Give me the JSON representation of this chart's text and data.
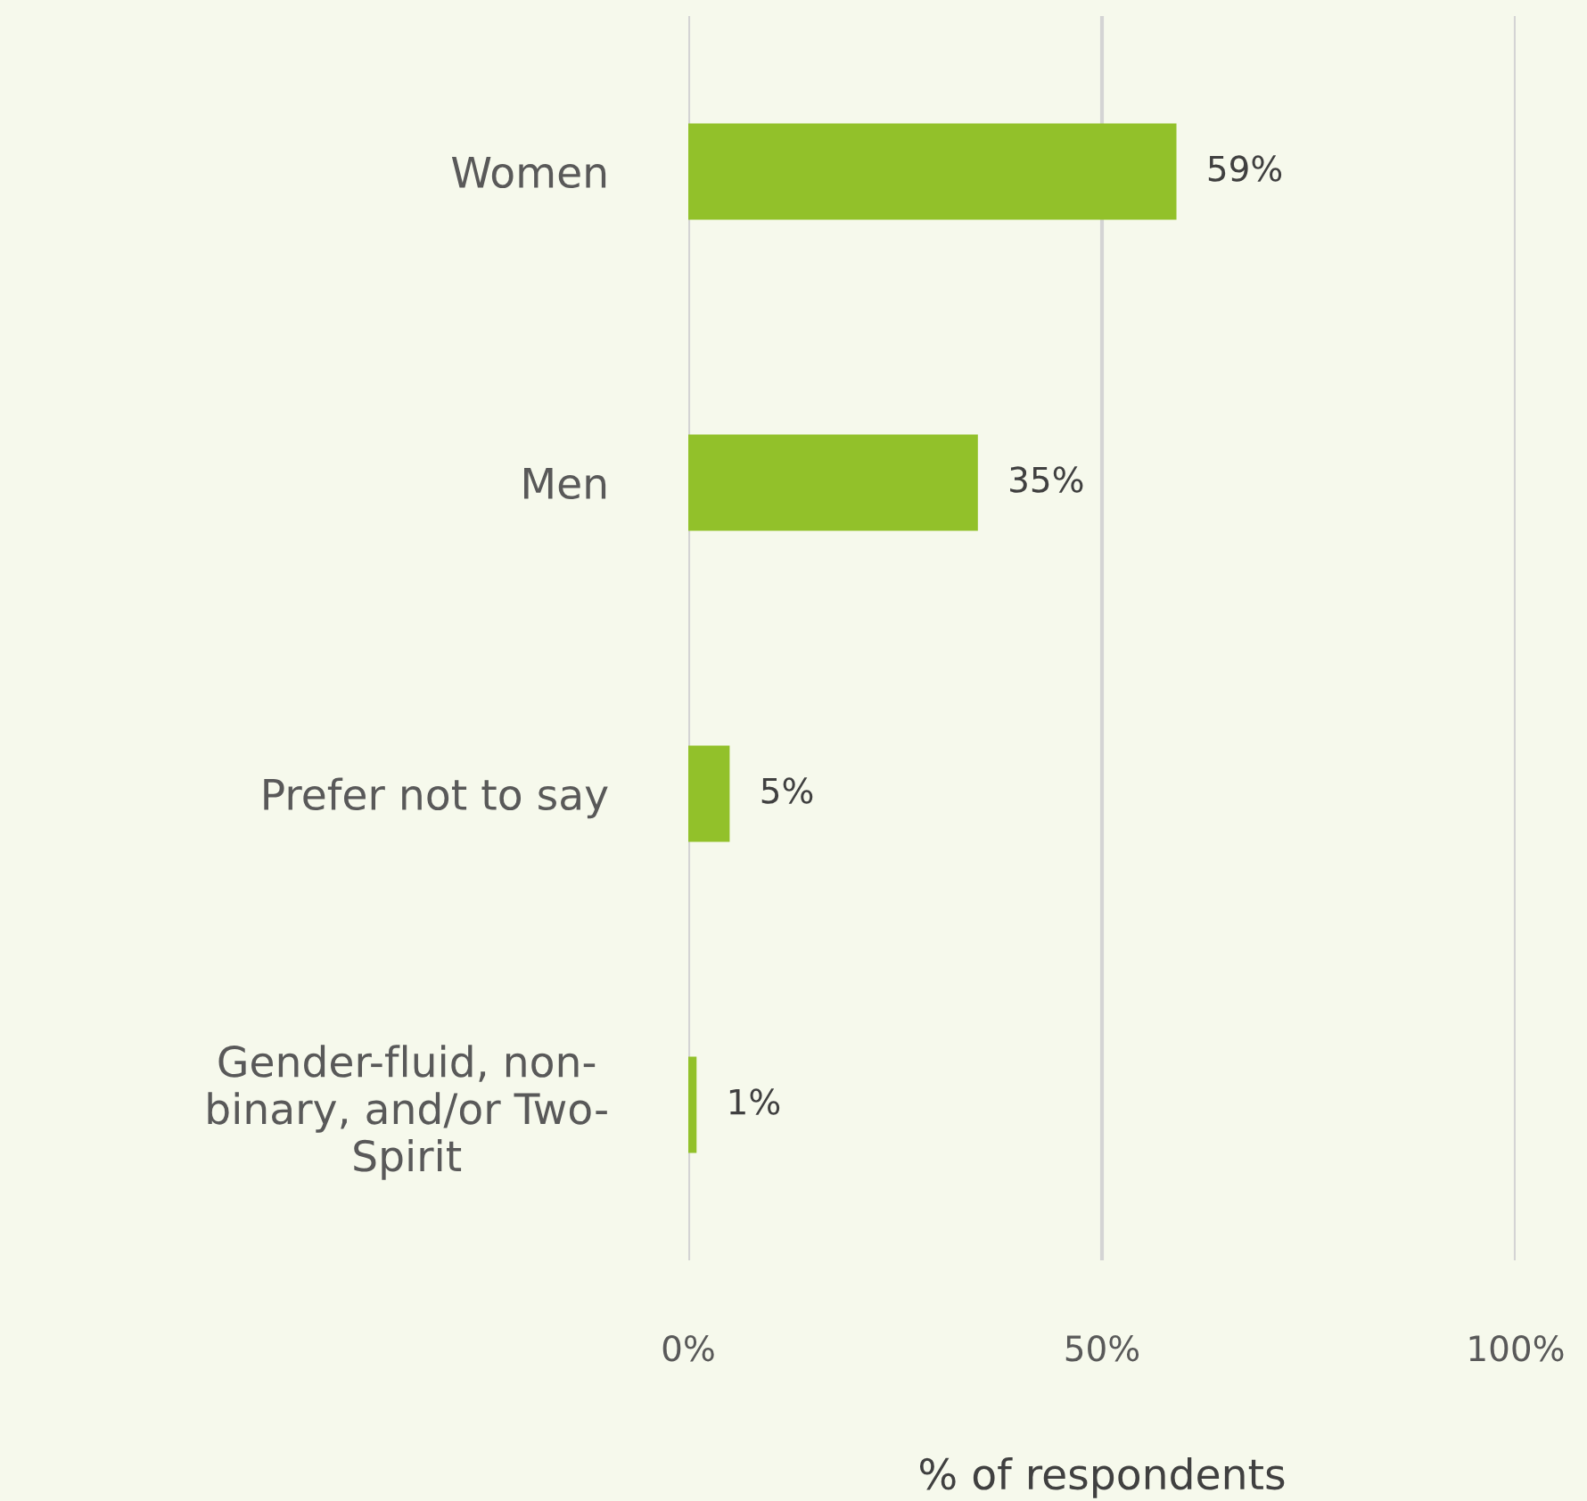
{
  "chart_data": {
    "type": "bar",
    "orientation": "horizontal",
    "categories": [
      "Women",
      "Men",
      "Prefer not to say",
      "Gender-fluid, non-\nbinary, and/or Two-\nSpirit"
    ],
    "values": [
      59,
      35,
      5,
      1
    ],
    "color": "#92c12a",
    "value_labels": [
      "59%",
      "35%",
      "5%",
      "1%"
    ],
    "xlabel": "% of respondents",
    "xlim": [
      0,
      100
    ],
    "xticks": [
      {
        "value": 0,
        "label": "0%"
      },
      {
        "value": 50,
        "label": "50%"
      },
      {
        "value": 100,
        "label": "100%"
      }
    ],
    "grid": "x",
    "legend": false
  }
}
